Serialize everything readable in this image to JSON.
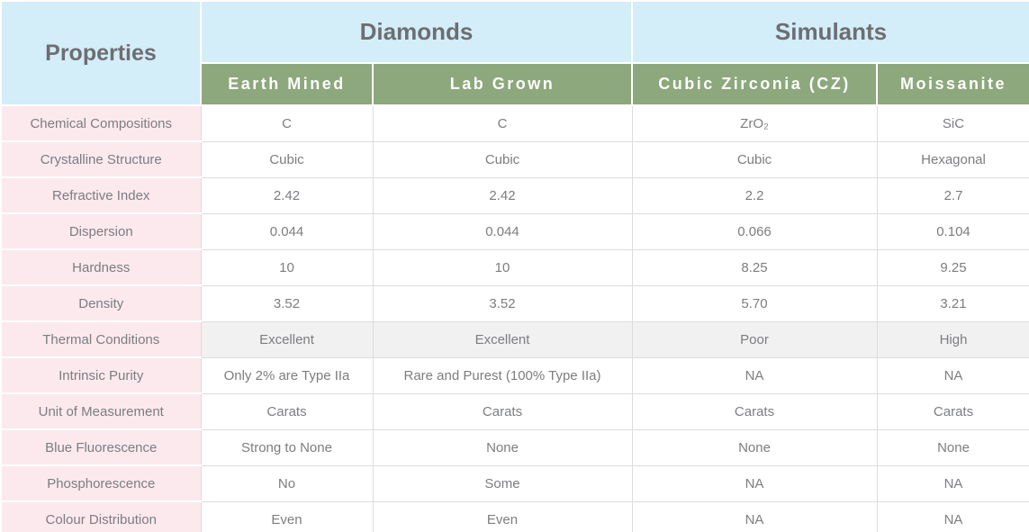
{
  "chart_data": {
    "type": "table",
    "corner_header": "Properties",
    "column_groups": [
      {
        "label": "Diamonds",
        "span": 2
      },
      {
        "label": "Simulants",
        "span": 2
      }
    ],
    "columns": [
      "Earth Mined",
      "Lab Grown",
      "Cubic Zirconia (CZ)",
      "Moissanite"
    ],
    "rows": [
      {
        "property": "Chemical Compositions",
        "values": [
          "C",
          "C",
          "ZrO₂",
          "SiC"
        ],
        "highlighted": false
      },
      {
        "property": "Crystalline Structure",
        "values": [
          "Cubic",
          "Cubic",
          "Cubic",
          "Hexagonal"
        ],
        "highlighted": false
      },
      {
        "property": "Refractive Index",
        "values": [
          "2.42",
          "2.42",
          "2.2",
          "2.7"
        ],
        "highlighted": false
      },
      {
        "property": "Dispersion",
        "values": [
          "0.044",
          "0.044",
          "0.066",
          "0.104"
        ],
        "highlighted": false
      },
      {
        "property": "Hardness",
        "values": [
          "10",
          "10",
          "8.25",
          "9.25"
        ],
        "highlighted": false
      },
      {
        "property": "Density",
        "values": [
          "3.52",
          "3.52",
          "5.70",
          "3.21"
        ],
        "highlighted": false
      },
      {
        "property": "Thermal Conditions",
        "values": [
          "Excellent",
          "Excellent",
          "Poor",
          "High"
        ],
        "highlighted": true
      },
      {
        "property": "Intrinsic Purity",
        "values": [
          "Only 2% are Type IIa",
          "Rare and Purest (100% Type IIa)",
          "NA",
          "NA"
        ],
        "highlighted": false
      },
      {
        "property": "Unit of Measurement",
        "values": [
          "Carats",
          "Carats",
          "Carats",
          "Carats"
        ],
        "highlighted": false
      },
      {
        "property": "Blue Fluorescence",
        "values": [
          "Strong to None",
          "None",
          "None",
          "None"
        ],
        "highlighted": false
      },
      {
        "property": "Phosphorescence",
        "values": [
          "No",
          "Some",
          "NA",
          "NA"
        ],
        "highlighted": false
      },
      {
        "property": "Colour Distribution",
        "values": [
          "Even",
          "Even",
          "NA",
          "NA"
        ],
        "highlighted": false
      }
    ]
  },
  "colors": {
    "header_blue": "#d3edf9",
    "header_green": "#8da87c",
    "property_pink": "#fbe9ee",
    "highlight_gray": "#f1f1f1",
    "header_text": "#6d6e71",
    "subheader_text": "#fdfdfd",
    "cell_text": "#7c7d80"
  }
}
